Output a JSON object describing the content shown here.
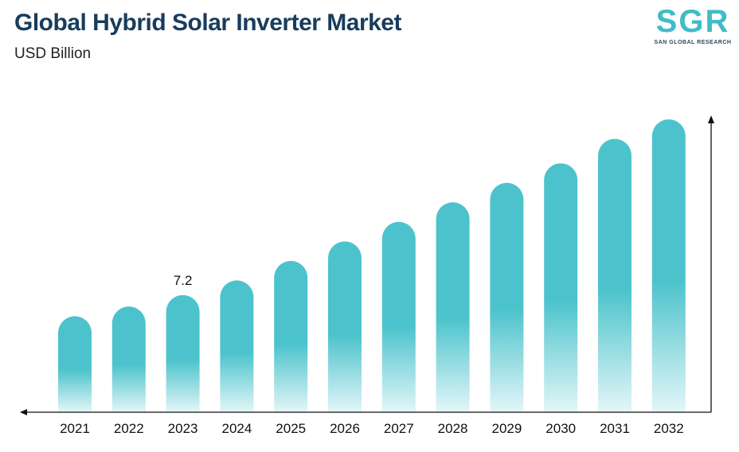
{
  "header": {
    "title": "Global Hybrid Solar Inverter Market",
    "subtitle": "USD Billion"
  },
  "logo": {
    "letters": "SGR",
    "tagline": "SAN GLOBAL RESEARCH"
  },
  "chart_data": {
    "type": "bar",
    "categories": [
      "2021",
      "2022",
      "2023",
      "2024",
      "2025",
      "2026",
      "2027",
      "2028",
      "2029",
      "2030",
      "2031",
      "2032"
    ],
    "values": [
      5.9,
      6.5,
      7.2,
      8.1,
      9.3,
      10.5,
      11.7,
      12.9,
      14.1,
      15.3,
      16.8,
      18.0
    ],
    "data_labels": [
      {
        "index": 2,
        "text": "7.2"
      }
    ],
    "xlabel": "",
    "ylabel": "",
    "grid": false,
    "legend": "none",
    "colors": {
      "bar": "#4cc3cc",
      "bar_fade": "#e3f6f8",
      "axis": "#111111",
      "logo": "#3fbcc8"
    }
  }
}
